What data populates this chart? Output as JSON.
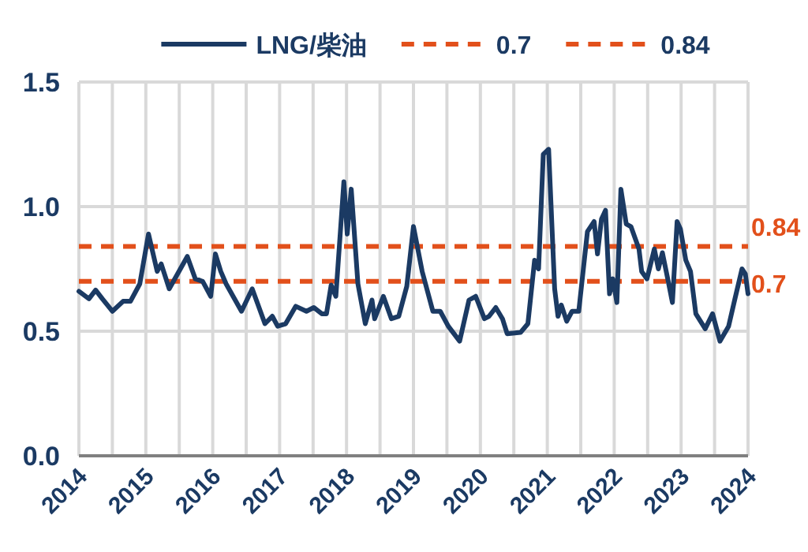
{
  "chart_data": {
    "type": "line",
    "legend": "top",
    "grid": true,
    "line_style": "solid",
    "marker": "none",
    "xlim": [
      2014,
      2024
    ],
    "ylim": [
      0,
      1.5
    ],
    "xticks": [
      2014,
      {
        "value": 2014.5,
        "label": null
      },
      2015,
      {
        "value": 2015.5,
        "label": null
      },
      2016,
      {
        "value": 2016.5,
        "label": null
      },
      2017,
      {
        "value": 2017.5,
        "label": null
      },
      2018,
      {
        "value": 2018.5,
        "label": null
      },
      2019,
      {
        "value": 2019.5,
        "label": null
      },
      2020,
      {
        "value": 2020.5,
        "label": null
      },
      2021,
      {
        "value": 2021.5,
        "label": null
      },
      2022,
      {
        "value": 2022.5,
        "label": null
      },
      2023,
      {
        "value": 2023.5,
        "label": null
      },
      2024
    ],
    "yticks": [
      {
        "value": 0,
        "label": "0.0"
      },
      {
        "value": 0.5,
        "label": "0.5"
      },
      {
        "value": 1,
        "label": "1.0"
      },
      {
        "value": 1.5,
        "label": "1.5"
      }
    ],
    "series": [
      {
        "name": "LNG/柴油",
        "color": "#1b3a63",
        "x": [
          2014.0,
          2014.15,
          2014.25,
          2014.35,
          2014.5,
          2014.66,
          2014.77,
          2014.91,
          2015.04,
          2015.17,
          2015.23,
          2015.35,
          2015.62,
          2015.74,
          2015.85,
          2015.97,
          2016.04,
          2016.12,
          2016.2,
          2016.43,
          2016.59,
          2016.78,
          2016.89,
          2016.97,
          2017.09,
          2017.24,
          2017.4,
          2017.51,
          2017.63,
          2017.7,
          2017.77,
          2017.84,
          2017.96,
          2018.01,
          2018.07,
          2018.17,
          2018.28,
          2018.38,
          2018.42,
          2018.55,
          2018.67,
          2018.78,
          2018.9,
          2019.0,
          2019.13,
          2019.29,
          2019.4,
          2019.52,
          2019.69,
          2019.83,
          2019.93,
          2020.06,
          2020.13,
          2020.23,
          2020.33,
          2020.4,
          2020.6,
          2020.71,
          2020.81,
          2020.87,
          2020.94,
          2021.02,
          2021.11,
          2021.16,
          2021.21,
          2021.29,
          2021.37,
          2021.47,
          2021.6,
          2021.7,
          2021.75,
          2021.81,
          2021.87,
          2021.93,
          2021.98,
          2022.04,
          2022.1,
          2022.18,
          2022.25,
          2022.37,
          2022.41,
          2022.49,
          2022.6,
          2022.66,
          2022.72,
          2022.8,
          2022.87,
          2022.94,
          2022.99,
          2023.07,
          2023.14,
          2023.22,
          2023.36,
          2023.47,
          2023.58,
          2023.71,
          2023.8,
          2023.91,
          2023.96,
          2024.0
        ],
        "values": [
          0.66,
          0.63,
          0.665,
          0.63,
          0.58,
          0.62,
          0.62,
          0.69,
          0.89,
          0.74,
          0.77,
          0.67,
          0.8,
          0.71,
          0.7,
          0.64,
          0.81,
          0.74,
          0.69,
          0.58,
          0.67,
          0.53,
          0.56,
          0.52,
          0.53,
          0.6,
          0.58,
          0.595,
          0.57,
          0.57,
          0.685,
          0.64,
          1.1,
          0.89,
          1.07,
          0.69,
          0.53,
          0.625,
          0.55,
          0.64,
          0.55,
          0.56,
          0.68,
          0.92,
          0.74,
          0.58,
          0.58,
          0.52,
          0.46,
          0.625,
          0.64,
          0.55,
          0.56,
          0.595,
          0.55,
          0.49,
          0.495,
          0.53,
          0.785,
          0.75,
          1.21,
          1.23,
          0.67,
          0.56,
          0.605,
          0.54,
          0.58,
          0.58,
          0.9,
          0.94,
          0.81,
          0.95,
          0.985,
          0.65,
          0.71,
          0.615,
          1.07,
          0.93,
          0.92,
          0.83,
          0.74,
          0.71,
          0.83,
          0.75,
          0.815,
          0.71,
          0.615,
          0.94,
          0.91,
          0.785,
          0.74,
          0.57,
          0.51,
          0.57,
          0.46,
          0.52,
          0.625,
          0.75,
          0.73,
          0.65
        ]
      }
    ],
    "ref_lines": [
      {
        "axis": "y",
        "value": 0.7,
        "label": "0.7",
        "color": "#e2501b",
        "line_style": "dashed"
      },
      {
        "axis": "y",
        "value": 0.84,
        "label": "0.84",
        "color": "#e2501b",
        "line_style": "dashed"
      }
    ]
  }
}
